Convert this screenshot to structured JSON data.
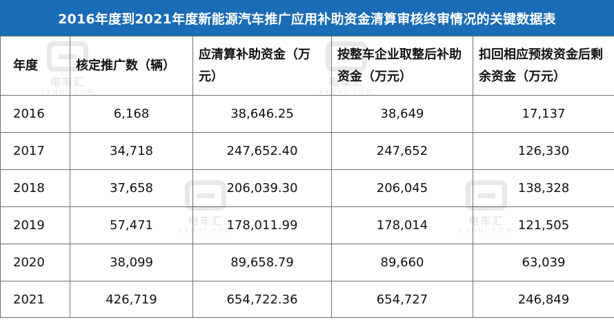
{
  "title": "2016年度到2021年度新能源汽车推广应用补助资金清算审核终审情况的关键数据表",
  "columns": [
    "年度",
    "核定推广数（辆）",
    "应清算补助资金（万元）",
    "按整车企业取整后补助资金（万元）",
    "扣回相应预拨资金后剩余资金（万元）"
  ],
  "rows": [
    {
      "year": "2016",
      "vehicles": "6,168",
      "subsidy": "38,646.25",
      "rounded": "38,649",
      "remaining": "17,137"
    },
    {
      "year": "2017",
      "vehicles": "34,718",
      "subsidy": "247,652.40",
      "rounded": "247,652",
      "remaining": "126,330"
    },
    {
      "year": "2018",
      "vehicles": "37,658",
      "subsidy": "206,039.30",
      "rounded": "206,045",
      "remaining": "138,328"
    },
    {
      "year": "2019",
      "vehicles": "57,471",
      "subsidy": "178,011.99",
      "rounded": "178,014",
      "remaining": "121,505"
    },
    {
      "year": "2020",
      "vehicles": "38,099",
      "subsidy": "89,658.79",
      "rounded": "89,660",
      "remaining": "63,039"
    },
    {
      "year": "2021",
      "vehicles": "426,719",
      "subsidy": "654,722.36",
      "rounded": "654,727",
      "remaining": "246,849"
    }
  ],
  "watermark": {
    "brand_cn": "电车汇",
    "brand_en": "EVHUI.COM"
  },
  "colors": {
    "title_bg": "#1a6cb6",
    "title_text": "#ffffff",
    "border": "#6f6f6f"
  }
}
